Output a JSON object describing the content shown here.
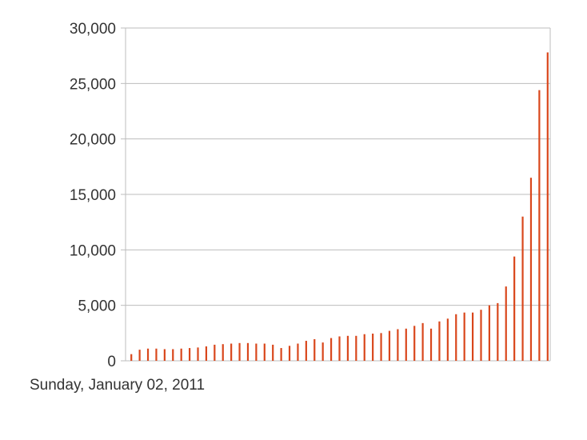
{
  "chart_data": {
    "type": "bar",
    "title": "",
    "xlabel": "",
    "ylabel": "",
    "ylim": [
      0,
      30000
    ],
    "yticks": [
      0,
      5000,
      10000,
      15000,
      20000,
      25000,
      30000
    ],
    "ytick_labels": [
      "0",
      "5,000",
      "10,000",
      "15,000",
      "20,000",
      "25,000",
      "30,000"
    ],
    "x_tick_labels": [
      "Sunday, January 02, 2011"
    ],
    "grid": true,
    "legend": "none",
    "bar_color": "#d9471c",
    "series": [
      {
        "values": [
          600,
          1000,
          1100,
          1100,
          1050,
          1050,
          1100,
          1150,
          1200,
          1300,
          1450,
          1500,
          1550,
          1600,
          1600,
          1550,
          1550,
          1450,
          1150,
          1350,
          1550,
          1800,
          1950,
          1650,
          2050,
          2200,
          2250,
          2250,
          2400,
          2450,
          2500,
          2700,
          2850,
          2900,
          3150,
          3400,
          2900,
          3550,
          3800,
          4200,
          4350,
          4350,
          4600,
          5000,
          5200,
          6700,
          9400,
          13000,
          16500,
          24400,
          27800
        ]
      }
    ]
  }
}
